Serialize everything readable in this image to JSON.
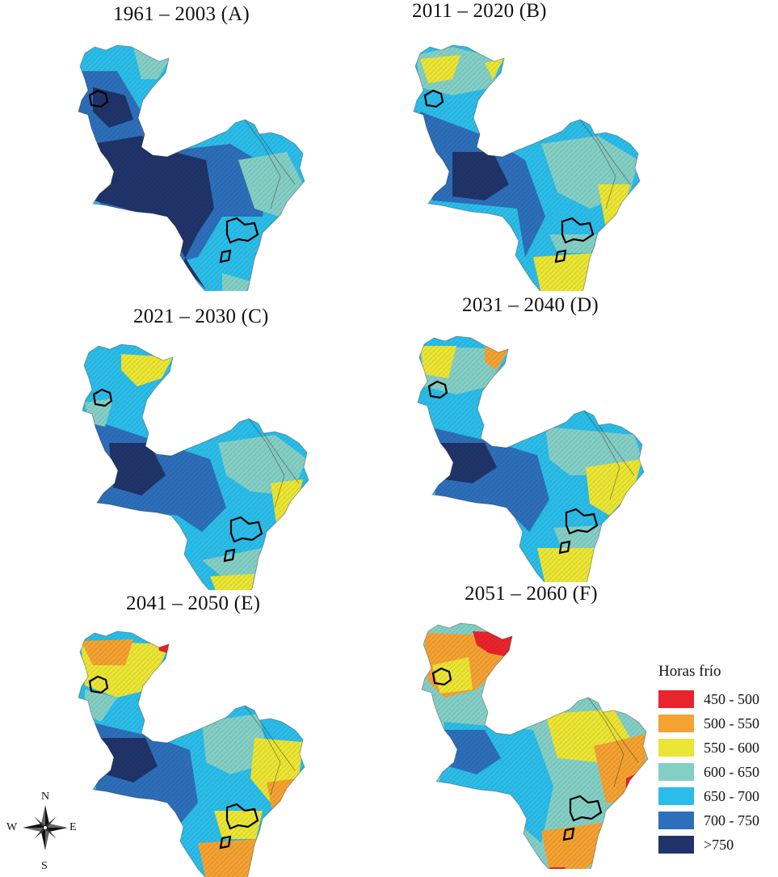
{
  "panels": [
    {
      "title": "1961 – 2003 (A)"
    },
    {
      "title": "2011 – 2020 (B)"
    },
    {
      "title": "2021 – 2030 (C)"
    },
    {
      "title": "2031 – 2040 (D)"
    },
    {
      "title": "2041 – 2050 (E)"
    },
    {
      "title": "2051 – 2060 (F)"
    }
  ],
  "legend": {
    "title": "Horas frío",
    "items": [
      {
        "label": "450 - 500",
        "color": "#e8242c"
      },
      {
        "label": "500 - 550",
        "color": "#f4a232"
      },
      {
        "label": "550 - 600",
        "color": "#ebe534"
      },
      {
        "label": "600 - 650",
        "color": "#84cfc5"
      },
      {
        "label": "650 - 700",
        "color": "#2bbde9"
      },
      {
        "label": "700 - 750",
        "color": "#2d6fba"
      },
      {
        "label": ">750",
        "color": "#20346a"
      }
    ]
  },
  "compass": {
    "n": "N",
    "s": "S",
    "e": "E",
    "w": "W"
  }
}
